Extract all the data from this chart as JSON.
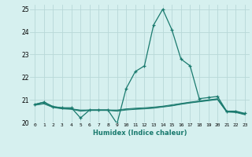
{
  "title": "",
  "xlabel": "Humidex (Indice chaleur)",
  "ylabel": "",
  "background_color": "#d6f0ef",
  "grid_color": "#b8d8d8",
  "line_color": "#1a7a6e",
  "xlim": [
    -0.5,
    23.5
  ],
  "ylim": [
    20.0,
    25.2
  ],
  "yticks": [
    20,
    21,
    22,
    23,
    24,
    25
  ],
  "xticks": [
    0,
    1,
    2,
    3,
    4,
    5,
    6,
    7,
    8,
    9,
    10,
    11,
    12,
    13,
    14,
    15,
    16,
    17,
    18,
    19,
    20,
    21,
    22,
    23
  ],
  "spike": {
    "x": [
      0,
      1,
      2,
      3,
      4,
      5,
      6,
      7,
      8,
      9,
      10,
      11,
      12,
      13,
      14,
      15,
      16,
      17,
      18,
      19,
      20,
      21,
      22,
      23
    ],
    "y": [
      20.8,
      20.9,
      20.7,
      20.65,
      20.65,
      20.2,
      20.55,
      20.55,
      20.55,
      19.95,
      21.5,
      22.25,
      22.5,
      24.3,
      25.0,
      24.1,
      22.8,
      22.5,
      21.05,
      21.1,
      21.15,
      20.5,
      20.5,
      20.4
    ]
  },
  "flat_lines": [
    [
      20.8,
      20.9,
      20.7,
      20.65,
      20.6,
      20.55,
      20.55,
      20.55,
      20.55,
      20.55,
      20.6,
      20.63,
      20.65,
      20.68,
      20.72,
      20.78,
      20.84,
      20.9,
      20.95,
      21.0,
      21.05,
      20.5,
      20.48,
      20.38
    ],
    [
      20.78,
      20.85,
      20.68,
      20.62,
      20.6,
      20.52,
      20.55,
      20.55,
      20.55,
      20.52,
      20.58,
      20.6,
      20.62,
      20.65,
      20.7,
      20.75,
      20.82,
      20.88,
      20.93,
      20.98,
      21.03,
      20.48,
      20.46,
      20.36
    ],
    [
      20.76,
      20.82,
      20.66,
      20.6,
      20.58,
      20.5,
      20.53,
      20.53,
      20.53,
      20.5,
      20.55,
      20.58,
      20.6,
      20.63,
      20.68,
      20.73,
      20.8,
      20.86,
      20.91,
      20.96,
      21.01,
      20.46,
      20.44,
      20.34
    ]
  ]
}
